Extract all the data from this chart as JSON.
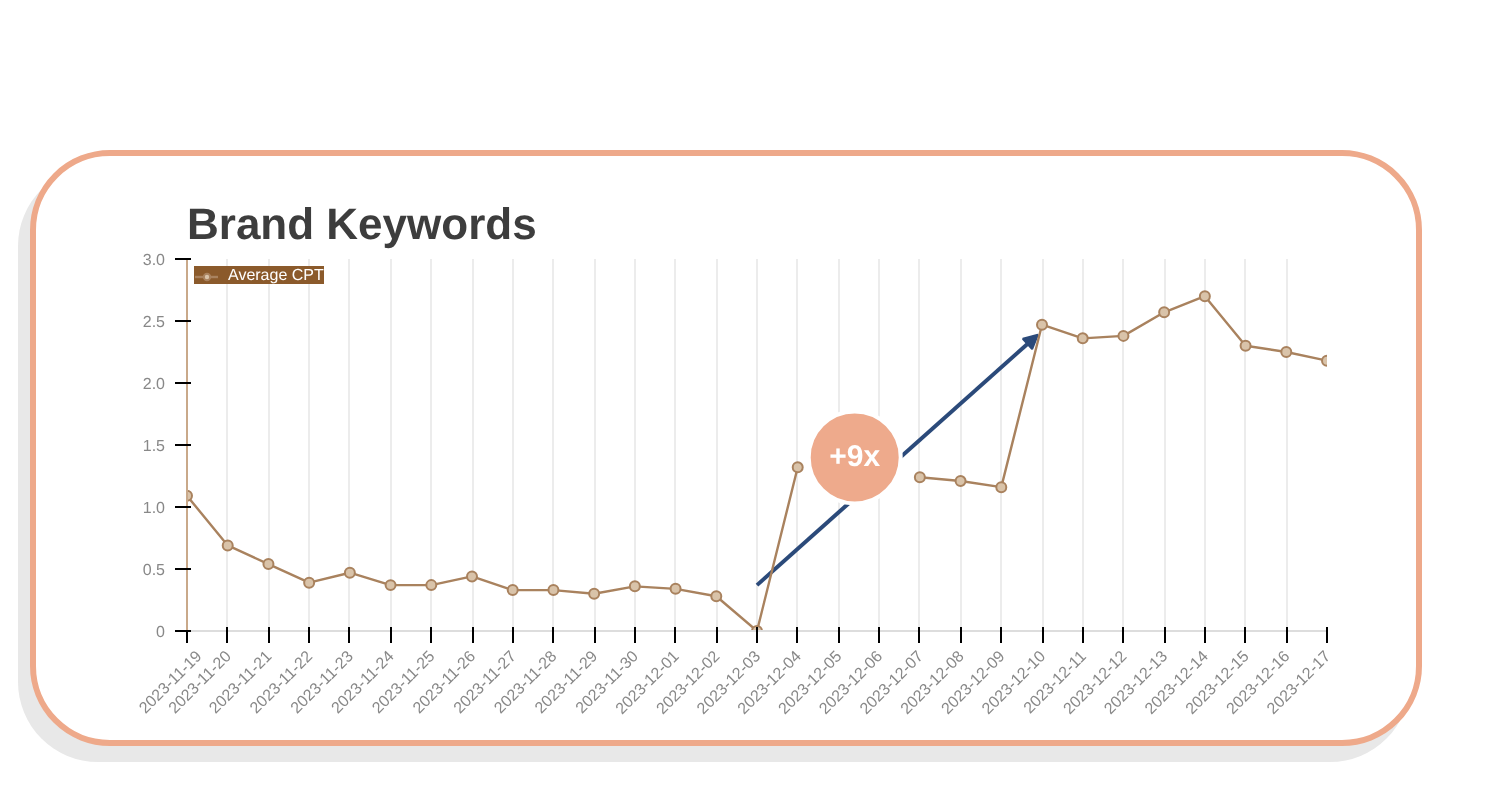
{
  "chart_data": {
    "type": "line",
    "title": "Brand Keywords",
    "categories": [
      "2023-11-19",
      "2023-11-20",
      "2023-11-21",
      "2023-11-22",
      "2023-11-23",
      "2023-11-24",
      "2023-11-25",
      "2023-11-26",
      "2023-11-27",
      "2023-11-28",
      "2023-11-29",
      "2023-11-30",
      "2023-12-01",
      "2023-12-02",
      "2023-12-03",
      "2023-12-04",
      "2023-12-05",
      "2023-12-06",
      "2023-12-07",
      "2023-12-08",
      "2023-12-09",
      "2023-12-10",
      "2023-12-11",
      "2023-12-12",
      "2023-12-13",
      "2023-12-14",
      "2023-12-15",
      "2023-12-16",
      "2023-12-17"
    ],
    "series": [
      {
        "name": "Average CPT",
        "color": "#a9825e",
        "values": [
          1.09,
          0.69,
          0.54,
          0.39,
          0.47,
          0.37,
          0.37,
          0.44,
          0.33,
          0.33,
          0.3,
          0.36,
          0.34,
          0.28,
          0,
          1.32,
          null,
          null,
          1.24,
          1.21,
          1.16,
          2.47,
          2.36,
          2.38,
          2.57,
          2.7,
          2.3,
          2.25,
          2.18
        ]
      }
    ],
    "ylim": [
      0,
      3
    ],
    "yticks": [
      0,
      0.5,
      {
        "value": 1,
        "label": "1.0"
      },
      1.5,
      {
        "value": 2,
        "label": "2.0"
      },
      2.5,
      {
        "value": 3,
        "label": "3.0"
      }
    ],
    "annotations": [
      "+9x"
    ],
    "grid": "x",
    "legend": "top left",
    "marker": "circle",
    "line_style": "solid"
  }
}
